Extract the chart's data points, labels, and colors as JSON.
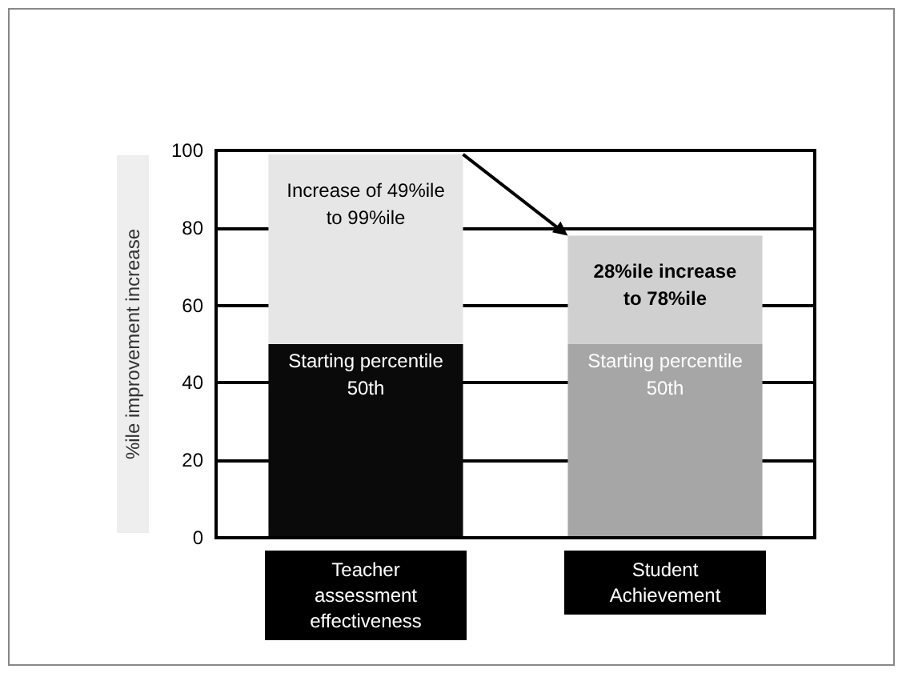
{
  "chart_data": {
    "type": "bar",
    "stacked": true,
    "ylabel": "%ile improvement increase",
    "categories": [
      "Teacher\nassessment\neffectiveness",
      "Student\nAchievement"
    ],
    "series": [
      {
        "colors": [
          "#0a0a0a",
          "#a6a6a6"
        ],
        "values": [
          50,
          50
        ],
        "value_labels": [
          "Starting percentile\n50th",
          "Starting percentile\n50th"
        ]
      },
      {
        "colors": [
          "#e6e6e6",
          "#d0d0d0"
        ],
        "values": [
          49,
          28
        ],
        "value_labels": [
          "Increase of 49%ile\nto 99%ile",
          "28%ile increase\nto 78%ile"
        ]
      }
    ],
    "ylim": [
      0,
      100
    ],
    "yticks": [
      0,
      20,
      40,
      60,
      80,
      100
    ],
    "grid": "y"
  }
}
